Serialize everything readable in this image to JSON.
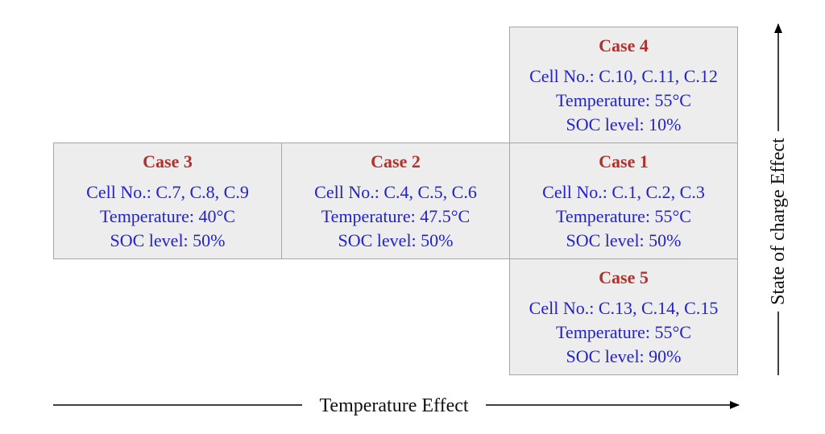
{
  "cases": [
    {
      "id": "c4",
      "title": "Case 4",
      "cells": "Cell No.: C.10, C.11, C.12",
      "temperature": "Temperature: 55°C",
      "soc": "SOC level: 10%"
    },
    {
      "id": "c3",
      "title": "Case 3",
      "cells": "Cell No.: C.7, C.8, C.9",
      "temperature": "Temperature: 40°C",
      "soc": "SOC level: 50%"
    },
    {
      "id": "c2",
      "title": "Case 2",
      "cells": "Cell No.: C.4, C.5, C.6",
      "temperature": "Temperature: 47.5°C",
      "soc": "SOC level: 50%"
    },
    {
      "id": "c1",
      "title": "Case 1",
      "cells": "Cell No.: C.1, C.2, C.3",
      "temperature": "Temperature: 55°C",
      "soc": "SOC level: 50%"
    },
    {
      "id": "c5",
      "title": "Case 5",
      "cells": "Cell No.: C.13, C.14, C.15",
      "temperature": "Temperature: 55°C",
      "soc": "SOC level: 90%"
    }
  ],
  "axes": {
    "x_label": "Temperature Effect",
    "y_label": "State of charge Effect"
  },
  "colors": {
    "title": "#b0322e",
    "text": "#2323c8",
    "cell_fill": "#ededed",
    "cell_border": "#a6a6a6"
  }
}
